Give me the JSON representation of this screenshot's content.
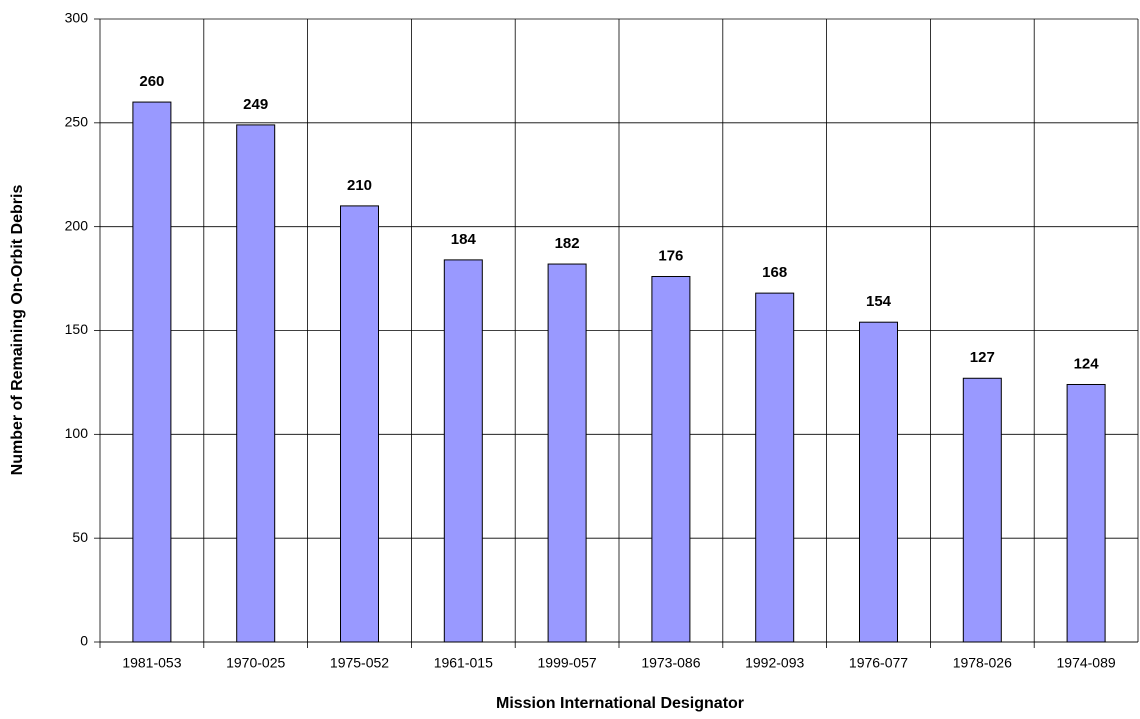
{
  "chart_data": {
    "type": "bar",
    "xlabel": "Mission International Designator",
    "ylabel": "Number of Remaining On-Orbit Debris",
    "categories": [
      "1981-053",
      "1970-025",
      "1975-052",
      "1961-015",
      "1999-057",
      "1973-086",
      "1992-093",
      "1976-077",
      "1978-026",
      "1974-089"
    ],
    "values": [
      260,
      249,
      210,
      184,
      182,
      176,
      168,
      154,
      127,
      124
    ],
    "color": "#9999ff",
    "ylim": [
      0,
      300
    ],
    "yticks": [
      0,
      50,
      100,
      150,
      200,
      250,
      300
    ],
    "grid": true
  }
}
